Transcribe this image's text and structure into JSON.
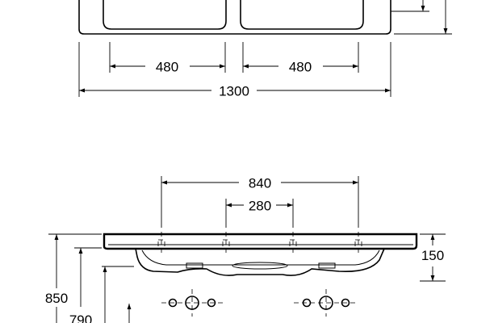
{
  "dimensions": {
    "basin_width_left": "480",
    "basin_width_right": "480",
    "overall_width": "1300",
    "tap_hole_outer": "840",
    "tap_hole_inner": "280",
    "counter_thickness": "150",
    "height_top": "850",
    "height_lower": "790"
  }
}
